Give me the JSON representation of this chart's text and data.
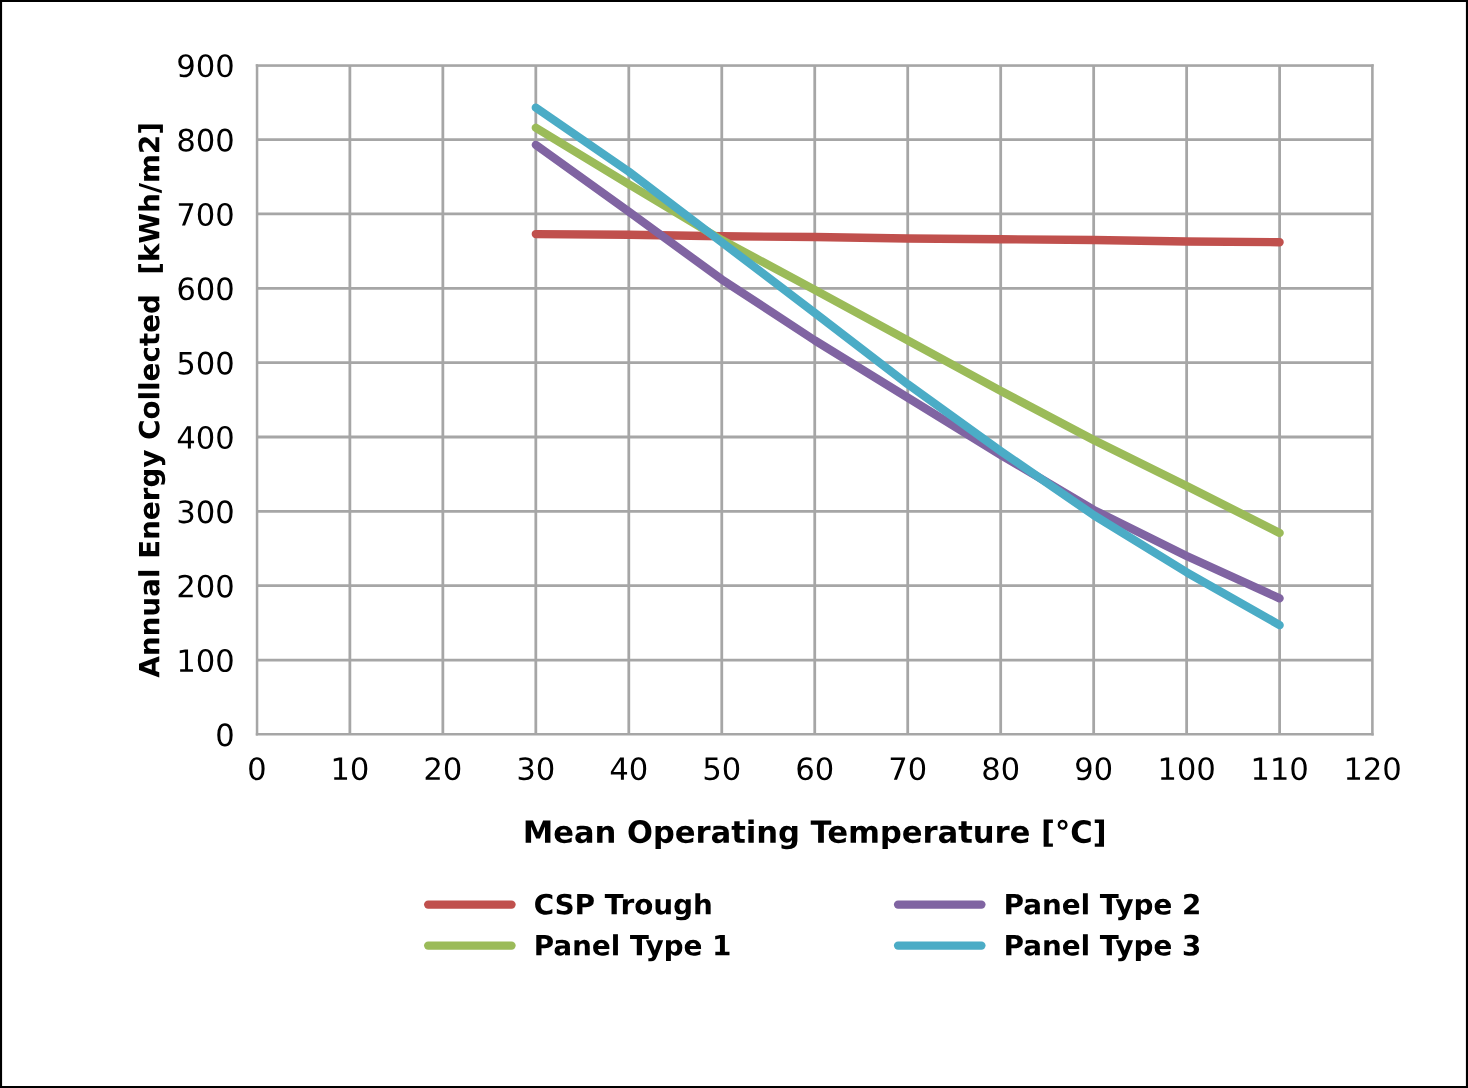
{
  "chart_data": {
    "type": "line",
    "xlabel": "Mean Operating Temperature [°C]",
    "ylabel": "Annual Energy Collected  [kWh/m2]",
    "x": [
      30,
      40,
      50,
      60,
      70,
      80,
      90,
      100,
      110
    ],
    "series": [
      {
        "name": "CSP Trough",
        "color": "#c0504d",
        "values": [
          673,
          672,
          670,
          669,
          667,
          666,
          665,
          663,
          662
        ]
      },
      {
        "name": "Panel Type 1",
        "color": "#9bbb59",
        "values": [
          816,
          740,
          665,
          598,
          530,
          462,
          396,
          334,
          271
        ]
      },
      {
        "name": "Panel Type 2",
        "color": "#8064a2",
        "values": [
          793,
          703,
          612,
          530,
          453,
          376,
          302,
          240,
          183
        ]
      },
      {
        "name": "Panel Type 3",
        "color": "#4bacc6",
        "values": [
          843,
          757,
          662,
          567,
          471,
          381,
          295,
          218,
          147
        ]
      }
    ],
    "xlim": [
      0,
      120
    ],
    "xticks": [
      0,
      10,
      20,
      30,
      40,
      50,
      60,
      70,
      80,
      90,
      100,
      110,
      120
    ],
    "ylim": [
      0,
      900
    ],
    "yticks": [
      0,
      100,
      200,
      300,
      400,
      500,
      600,
      700,
      800,
      900
    ],
    "grid": true,
    "legend": "bottom",
    "marker": "none",
    "line_style": "solid"
  }
}
